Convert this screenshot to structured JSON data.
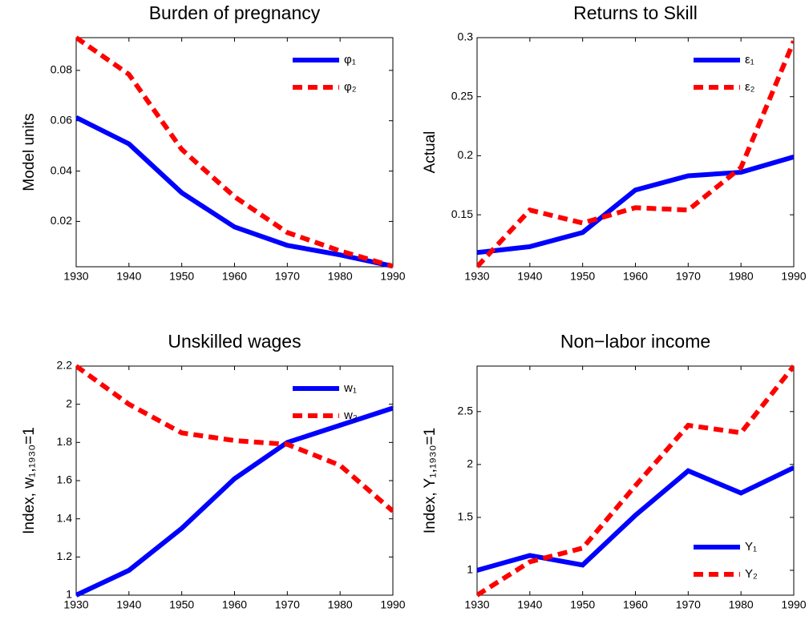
{
  "chart_data": [
    {
      "type": "line",
      "title": "Burden of pregnancy",
      "y_label": "Model units",
      "x": [
        1930,
        1940,
        1950,
        1960,
        1970,
        1980,
        1990
      ],
      "xlim": [
        1930,
        1990
      ],
      "xticks": [
        1930,
        1940,
        1950,
        1960,
        1970,
        1980,
        1990
      ],
      "ylim": [
        0.002,
        0.093
      ],
      "yticks": [
        0.02,
        0.04,
        0.06,
        0.08
      ],
      "legend": "northeast",
      "series": [
        {
          "name": "φ₁",
          "color": "#0000ff",
          "style": "solid",
          "values": [
            0.0613,
            0.0508,
            0.0314,
            0.0178,
            0.0105,
            0.0067,
            0.0022
          ]
        },
        {
          "name": "φ₂",
          "color": "#ff0000",
          "style": "dashed",
          "values": [
            0.093,
            0.0784,
            0.0486,
            0.0298,
            0.0156,
            0.0083,
            0.0022
          ]
        }
      ]
    },
    {
      "type": "line",
      "title": "Returns to Skill",
      "y_label": "Actual",
      "x": [
        1930,
        1940,
        1950,
        1960,
        1970,
        1980,
        1990
      ],
      "xlim": [
        1930,
        1990
      ],
      "xticks": [
        1930,
        1940,
        1950,
        1960,
        1970,
        1980,
        1990
      ],
      "ylim": [
        0.106,
        0.3
      ],
      "yticks": [
        0.15,
        0.2,
        0.25,
        0.3
      ],
      "legend": "northeast",
      "series": [
        {
          "name": "ε₁",
          "color": "#0000ff",
          "style": "solid",
          "values": [
            0.118,
            0.123,
            0.135,
            0.171,
            0.183,
            0.186,
            0.199
          ]
        },
        {
          "name": "ε₂",
          "color": "#ff0000",
          "style": "dashed",
          "values": [
            0.106,
            0.154,
            0.143,
            0.156,
            0.154,
            0.19,
            0.297
          ]
        }
      ]
    },
    {
      "type": "line",
      "title": "Unskilled wages",
      "y_label": "Index, w₁,₁₉₃₀=1",
      "x": [
        1930,
        1940,
        1950,
        1960,
        1970,
        1980,
        1990
      ],
      "xlim": [
        1930,
        1990
      ],
      "xticks": [
        1930,
        1940,
        1950,
        1960,
        1970,
        1980,
        1990
      ],
      "ylim": [
        1,
        2.2
      ],
      "yticks": [
        1,
        1.2,
        1.4,
        1.6,
        1.8,
        2,
        2.2
      ],
      "legend": "northeast",
      "series": [
        {
          "name": "w₁",
          "color": "#0000ff",
          "style": "solid",
          "values": [
            1.0,
            1.13,
            1.35,
            1.61,
            1.8,
            1.89,
            1.98
          ]
        },
        {
          "name": "w₂",
          "color": "#ff0000",
          "style": "dashed",
          "values": [
            2.2,
            2.0,
            1.85,
            1.81,
            1.79,
            1.68,
            1.44
          ]
        }
      ]
    },
    {
      "type": "line",
      "title": "Non−labor income",
      "y_label": "Index,  Y₁,₁₉₃₀=1",
      "x": [
        1930,
        1940,
        1950,
        1960,
        1970,
        1980,
        1990
      ],
      "xlim": [
        1930,
        1990
      ],
      "xticks": [
        1930,
        1940,
        1950,
        1960,
        1970,
        1980,
        1990
      ],
      "ylim": [
        0.765,
        2.93
      ],
      "yticks": [
        1,
        1.5,
        2,
        2.5
      ],
      "legend": "southeast",
      "series": [
        {
          "name": "Y₁",
          "color": "#0000ff",
          "style": "solid",
          "values": [
            1.0,
            1.14,
            1.05,
            1.52,
            1.94,
            1.73,
            1.97
          ]
        },
        {
          "name": "Y₂",
          "color": "#ff0000",
          "style": "dashed",
          "values": [
            0.765,
            1.08,
            1.21,
            1.8,
            2.37,
            2.3,
            2.93
          ]
        }
      ]
    }
  ]
}
